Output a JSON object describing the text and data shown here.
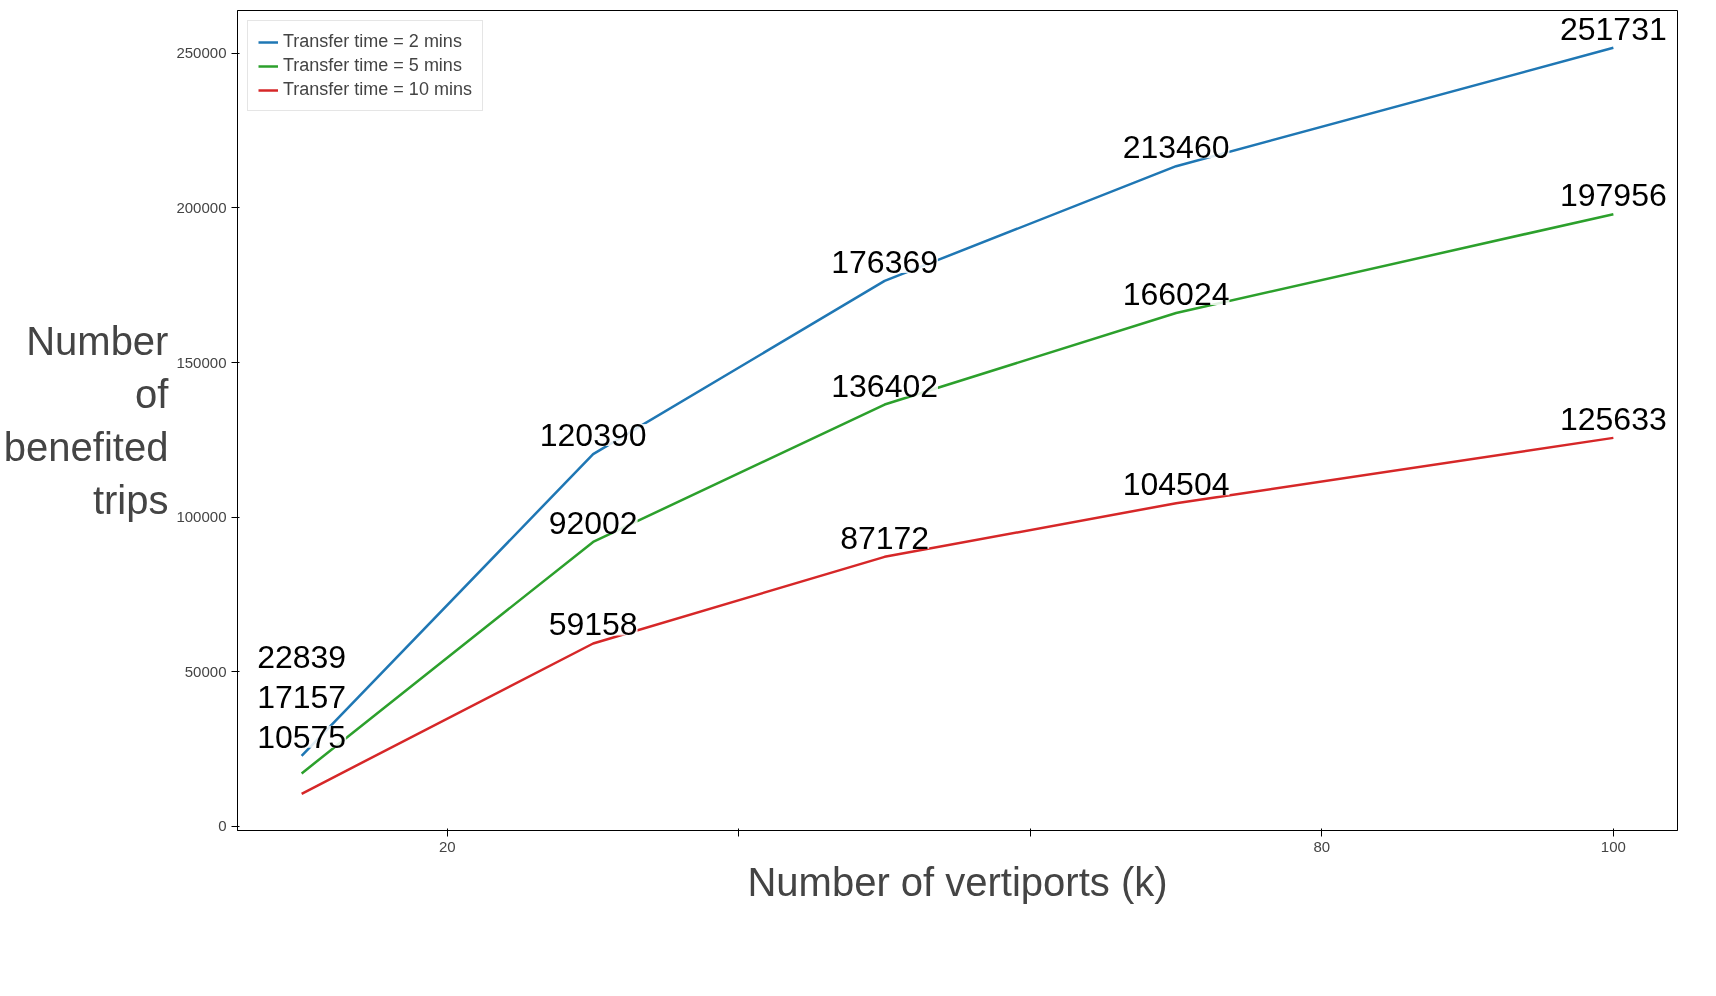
{
  "chart_data": {
    "type": "line",
    "xlabel": "Number of vertiports (k)",
    "ylabel": "Number of benefited trips",
    "x": [
      10,
      30,
      50,
      70,
      100
    ],
    "series": [
      {
        "name": "Transfer time = 2 mins",
        "color": "#1f77b4",
        "values": [
          22839,
          120390,
          176369,
          213460,
          251731
        ]
      },
      {
        "name": "Transfer time = 5 mins",
        "color": "#2ca02c",
        "values": [
          17157,
          92002,
          136402,
          166024,
          197956
        ]
      },
      {
        "name": "Transfer time = 10 mins",
        "color": "#d62728",
        "values": [
          10575,
          59158,
          87172,
          104504,
          125633
        ]
      }
    ],
    "xlim": [
      5.6,
      104.4
    ],
    "ylim": [
      -1300,
      263800
    ],
    "xticks": [
      20,
      {
        "value": 40,
        "label": null
      },
      {
        "value": 60,
        "label": null
      },
      80,
      100
    ],
    "yticks": [
      0,
      50000,
      100000,
      150000,
      200000,
      250000
    ],
    "data_labels": true,
    "legend": "top left",
    "grid": false,
    "marker": "none",
    "line_style": "solid"
  }
}
